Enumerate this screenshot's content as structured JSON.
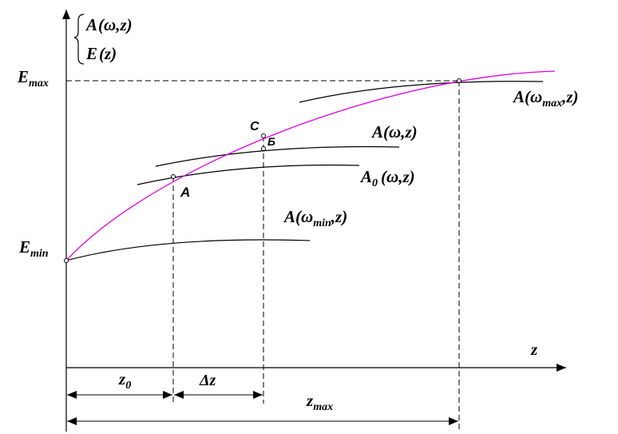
{
  "legend": {
    "line1": {
      "main": "A",
      "args": "(ω,z)"
    },
    "line2": {
      "main": "E",
      "args": "(z)"
    }
  },
  "axes": {
    "y_top": {
      "main": "E",
      "sub": "max"
    },
    "y_low": {
      "main": "E",
      "sub": "min"
    },
    "x_axis": "z"
  },
  "curves": {
    "a_max": {
      "main": "A",
      "open": "(",
      "omega": "ω",
      "sub": "max",
      "tail": ",z)"
    },
    "a_omega": {
      "main": "A",
      "args": "(ω,z)"
    },
    "a_zero": {
      "main": "A",
      "sub": "0",
      "args": "(ω,z)"
    },
    "a_min": {
      "main": "A",
      "open": "(",
      "omega": "ω",
      "sub": "min",
      "tail": ",z)"
    }
  },
  "points": {
    "c": "С",
    "b": "Б",
    "a": "А"
  },
  "dimensions": {
    "z0": {
      "main": "z",
      "sub": "0"
    },
    "dz": "Δz",
    "zmax": {
      "main": "z",
      "sub": "max"
    }
  },
  "colors": {
    "envelope": "#e000e0",
    "lines": "#000000"
  }
}
